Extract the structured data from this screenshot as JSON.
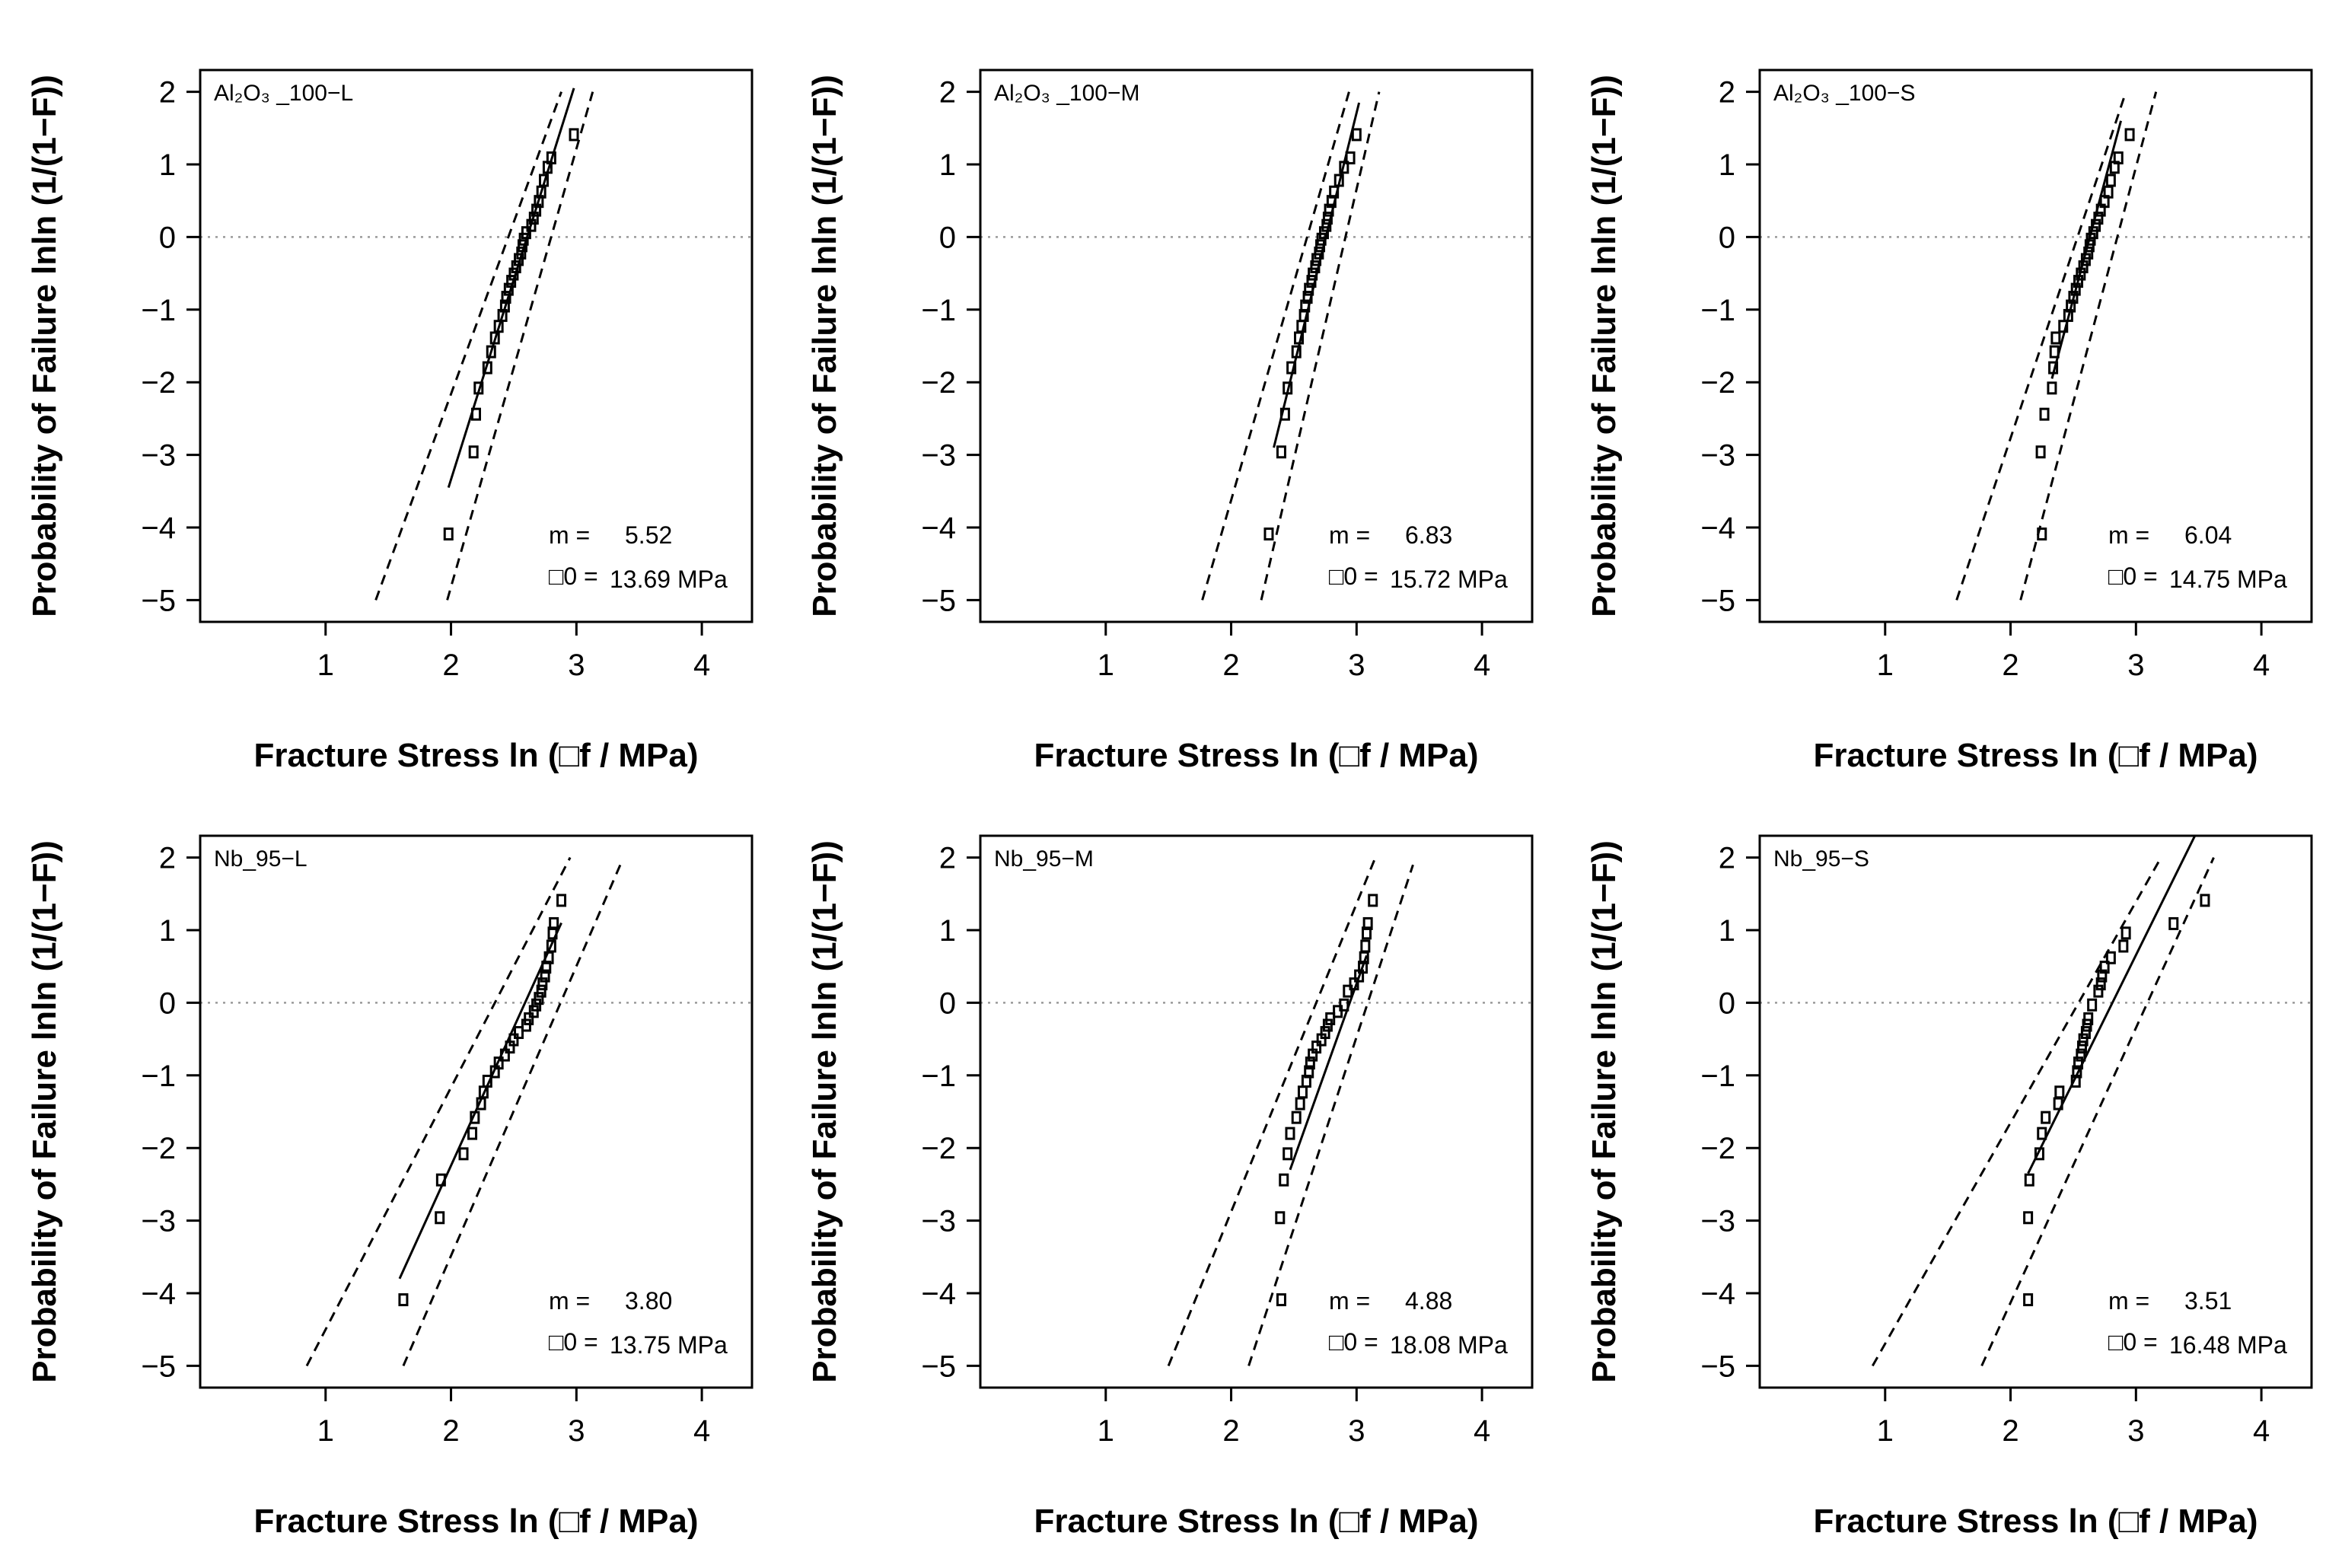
{
  "chart_data": [
    {
      "type": "scatter",
      "label": "Al₂O₃ _100−L",
      "xlabel": "Fracture Stress ln (□f / MPa)",
      "ylabel": "Probability of Failure lnln (1/(1−F))",
      "xlim": [
        0,
        4.4
      ],
      "ylim": [
        -5.3,
        2.3
      ],
      "xticks": [
        "1",
        "2",
        "3",
        "4"
      ],
      "yticks": [
        "2",
        "1",
        "0",
        "−1",
        "−2",
        "−3",
        "−4",
        "−5"
      ],
      "reference_line_y": 0,
      "points": [
        {
          "x": 1.98,
          "y": -4.09
        },
        {
          "x": 2.18,
          "y": -2.96
        },
        {
          "x": 2.2,
          "y": -2.44
        },
        {
          "x": 2.22,
          "y": -2.08
        },
        {
          "x": 2.29,
          "y": -1.8
        },
        {
          "x": 2.32,
          "y": -1.58
        },
        {
          "x": 2.35,
          "y": -1.39
        },
        {
          "x": 2.38,
          "y": -1.23
        },
        {
          "x": 2.41,
          "y": -1.08
        },
        {
          "x": 2.43,
          "y": -0.95
        },
        {
          "x": 2.44,
          "y": -0.83
        },
        {
          "x": 2.46,
          "y": -0.72
        },
        {
          "x": 2.48,
          "y": -0.61
        },
        {
          "x": 2.5,
          "y": -0.51
        },
        {
          "x": 2.52,
          "y": -0.41
        },
        {
          "x": 2.54,
          "y": -0.31
        },
        {
          "x": 2.56,
          "y": -0.22
        },
        {
          "x": 2.57,
          "y": -0.12
        },
        {
          "x": 2.58,
          "y": -0.03
        },
        {
          "x": 2.6,
          "y": 0.06
        },
        {
          "x": 2.64,
          "y": 0.16
        },
        {
          "x": 2.66,
          "y": 0.26
        },
        {
          "x": 2.68,
          "y": 0.37
        },
        {
          "x": 2.7,
          "y": 0.49
        },
        {
          "x": 2.72,
          "y": 0.62
        },
        {
          "x": 2.74,
          "y": 0.78
        },
        {
          "x": 2.77,
          "y": 0.96
        },
        {
          "x": 2.8,
          "y": 1.09
        },
        {
          "x": 2.98,
          "y": 1.41
        }
      ],
      "fit_line": [
        {
          "x": 1.98,
          "y": -3.45
        },
        {
          "x": 2.98,
          "y": 2.05
        }
      ],
      "conf_upper": [
        {
          "x": 1.4,
          "y": -5.0
        },
        {
          "x": 2.88,
          "y": 2.0
        }
      ],
      "conf_lower": [
        {
          "x": 1.97,
          "y": -5.0
        },
        {
          "x": 3.13,
          "y": 2.0
        }
      ],
      "m_label": "m =",
      "m_value": "5.52",
      "sigma_label": "□0 =",
      "sigma_value": "13.69 MPa"
    },
    {
      "type": "scatter",
      "label": "Al₂O₃ _100−M",
      "xlabel": "Fracture Stress ln (□f / MPa)",
      "ylabel": "Probability of Failure lnln (1/(1−F))",
      "xlim": [
        0,
        4.4
      ],
      "ylim": [
        -5.3,
        2.3
      ],
      "xticks": [
        "1",
        "2",
        "3",
        "4"
      ],
      "yticks": [
        "2",
        "1",
        "0",
        "−1",
        "−2",
        "−3",
        "−4",
        "−5"
      ],
      "reference_line_y": 0,
      "points": [
        {
          "x": 2.3,
          "y": -4.09
        },
        {
          "x": 2.4,
          "y": -2.96
        },
        {
          "x": 2.43,
          "y": -2.44
        },
        {
          "x": 2.45,
          "y": -2.08
        },
        {
          "x": 2.48,
          "y": -1.8
        },
        {
          "x": 2.52,
          "y": -1.58
        },
        {
          "x": 2.54,
          "y": -1.39
        },
        {
          "x": 2.56,
          "y": -1.23
        },
        {
          "x": 2.58,
          "y": -1.08
        },
        {
          "x": 2.59,
          "y": -0.95
        },
        {
          "x": 2.61,
          "y": -0.83
        },
        {
          "x": 2.62,
          "y": -0.72
        },
        {
          "x": 2.64,
          "y": -0.61
        },
        {
          "x": 2.65,
          "y": -0.51
        },
        {
          "x": 2.67,
          "y": -0.41
        },
        {
          "x": 2.68,
          "y": -0.31
        },
        {
          "x": 2.7,
          "y": -0.22
        },
        {
          "x": 2.71,
          "y": -0.12
        },
        {
          "x": 2.72,
          "y": -0.03
        },
        {
          "x": 2.74,
          "y": 0.06
        },
        {
          "x": 2.76,
          "y": 0.16
        },
        {
          "x": 2.77,
          "y": 0.26
        },
        {
          "x": 2.78,
          "y": 0.37
        },
        {
          "x": 2.8,
          "y": 0.49
        },
        {
          "x": 2.82,
          "y": 0.62
        },
        {
          "x": 2.86,
          "y": 0.78
        },
        {
          "x": 2.9,
          "y": 0.96
        },
        {
          "x": 2.95,
          "y": 1.09
        },
        {
          "x": 3.0,
          "y": 1.41
        }
      ],
      "fit_line": [
        {
          "x": 2.34,
          "y": -2.9
        },
        {
          "x": 3.02,
          "y": 1.85
        }
      ],
      "conf_upper": [
        {
          "x": 1.77,
          "y": -5.0
        },
        {
          "x": 2.94,
          "y": 2.0
        }
      ],
      "conf_lower": [
        {
          "x": 2.24,
          "y": -5.0
        },
        {
          "x": 3.18,
          "y": 2.0
        }
      ],
      "m_label": "m =",
      "m_value": "6.83",
      "sigma_label": "□0 =",
      "sigma_value": "15.72 MPa"
    },
    {
      "type": "scatter",
      "label": "Al₂O₃ _100−S",
      "xlabel": "Fracture Stress ln (□f / MPa)",
      "ylabel": "Probability of Failure lnln (1/(1−F))",
      "xlim": [
        0,
        4.4
      ],
      "ylim": [
        -5.3,
        2.3
      ],
      "xticks": [
        "1",
        "2",
        "3",
        "4"
      ],
      "yticks": [
        "2",
        "1",
        "0",
        "−1",
        "−2",
        "−3",
        "−4",
        "−5"
      ],
      "reference_line_y": 0,
      "points": [
        {
          "x": 2.25,
          "y": -4.09
        },
        {
          "x": 2.24,
          "y": -2.96
        },
        {
          "x": 2.27,
          "y": -2.44
        },
        {
          "x": 2.33,
          "y": -2.08
        },
        {
          "x": 2.34,
          "y": -1.8
        },
        {
          "x": 2.35,
          "y": -1.58
        },
        {
          "x": 2.36,
          "y": -1.39
        },
        {
          "x": 2.42,
          "y": -1.23
        },
        {
          "x": 2.46,
          "y": -1.08
        },
        {
          "x": 2.48,
          "y": -0.95
        },
        {
          "x": 2.5,
          "y": -0.83
        },
        {
          "x": 2.52,
          "y": -0.72
        },
        {
          "x": 2.54,
          "y": -0.61
        },
        {
          "x": 2.56,
          "y": -0.51
        },
        {
          "x": 2.58,
          "y": -0.41
        },
        {
          "x": 2.6,
          "y": -0.31
        },
        {
          "x": 2.62,
          "y": -0.22
        },
        {
          "x": 2.63,
          "y": -0.12
        },
        {
          "x": 2.64,
          "y": -0.03
        },
        {
          "x": 2.66,
          "y": 0.06
        },
        {
          "x": 2.68,
          "y": 0.16
        },
        {
          "x": 2.7,
          "y": 0.26
        },
        {
          "x": 2.72,
          "y": 0.37
        },
        {
          "x": 2.75,
          "y": 0.49
        },
        {
          "x": 2.78,
          "y": 0.62
        },
        {
          "x": 2.8,
          "y": 0.78
        },
        {
          "x": 2.83,
          "y": 0.96
        },
        {
          "x": 2.86,
          "y": 1.09
        },
        {
          "x": 2.95,
          "y": 1.41
        }
      ],
      "fit_line": [
        {
          "x": 2.33,
          "y": -1.95
        },
        {
          "x": 2.88,
          "y": 1.6
        }
      ],
      "conf_upper": [
        {
          "x": 1.57,
          "y": -5.0
        },
        {
          "x": 2.92,
          "y": 2.0
        }
      ],
      "conf_lower": [
        {
          "x": 2.08,
          "y": -5.0
        },
        {
          "x": 3.16,
          "y": 2.0
        }
      ],
      "m_label": "m =",
      "m_value": "6.04",
      "sigma_label": "□0 =",
      "sigma_value": "14.75 MPa"
    },
    {
      "type": "scatter",
      "label": "Nb_95−L",
      "xlabel": "Fracture Stress ln (□f / MPa)",
      "ylabel": "Probability of Failure lnln (1/(1−F))",
      "xlim": [
        0,
        4.4
      ],
      "ylim": [
        -5.3,
        2.3
      ],
      "xticks": [
        "1",
        "2",
        "3",
        "4"
      ],
      "yticks": [
        "2",
        "1",
        "0",
        "−1",
        "−2",
        "−3",
        "−4",
        "−5"
      ],
      "reference_line_y": 0,
      "points": [
        {
          "x": 1.62,
          "y": -4.09
        },
        {
          "x": 1.91,
          "y": -2.96
        },
        {
          "x": 1.92,
          "y": -2.44
        },
        {
          "x": 2.1,
          "y": -2.08
        },
        {
          "x": 2.17,
          "y": -1.8
        },
        {
          "x": 2.19,
          "y": -1.58
        },
        {
          "x": 2.24,
          "y": -1.39
        },
        {
          "x": 2.26,
          "y": -1.23
        },
        {
          "x": 2.29,
          "y": -1.08
        },
        {
          "x": 2.35,
          "y": -0.95
        },
        {
          "x": 2.38,
          "y": -0.83
        },
        {
          "x": 2.43,
          "y": -0.72
        },
        {
          "x": 2.47,
          "y": -0.61
        },
        {
          "x": 2.5,
          "y": -0.51
        },
        {
          "x": 2.54,
          "y": -0.41
        },
        {
          "x": 2.6,
          "y": -0.31
        },
        {
          "x": 2.62,
          "y": -0.22
        },
        {
          "x": 2.66,
          "y": -0.12
        },
        {
          "x": 2.68,
          "y": -0.03
        },
        {
          "x": 2.7,
          "y": 0.06
        },
        {
          "x": 2.72,
          "y": 0.16
        },
        {
          "x": 2.73,
          "y": 0.26
        },
        {
          "x": 2.75,
          "y": 0.37
        },
        {
          "x": 2.76,
          "y": 0.49
        },
        {
          "x": 2.78,
          "y": 0.62
        },
        {
          "x": 2.8,
          "y": 0.78
        },
        {
          "x": 2.81,
          "y": 0.96
        },
        {
          "x": 2.82,
          "y": 1.09
        },
        {
          "x": 2.88,
          "y": 1.41
        }
      ],
      "fit_line": [
        {
          "x": 1.59,
          "y": -3.8
        },
        {
          "x": 2.88,
          "y": 1.1
        }
      ],
      "conf_upper": [
        {
          "x": 0.85,
          "y": -5.0
        },
        {
          "x": 2.95,
          "y": 2.0
        }
      ],
      "conf_lower": [
        {
          "x": 1.62,
          "y": -5.0
        },
        {
          "x": 3.35,
          "y": 1.9
        }
      ],
      "m_label": "m =",
      "m_value": "3.80",
      "sigma_label": "□0 =",
      "sigma_value": "13.75 MPa"
    },
    {
      "type": "scatter",
      "label": "Nb_95−M",
      "xlabel": "Fracture Stress ln (□f / MPa)",
      "ylabel": "Probability of Failure lnln (1/(1−F))",
      "xlim": [
        0,
        4.4
      ],
      "ylim": [
        -5.3,
        2.3
      ],
      "xticks": [
        "1",
        "2",
        "3",
        "4"
      ],
      "yticks": [
        "2",
        "1",
        "0",
        "−1",
        "−2",
        "−3",
        "−4",
        "−5"
      ],
      "reference_line_y": 0,
      "points": [
        {
          "x": 2.4,
          "y": -4.09
        },
        {
          "x": 2.39,
          "y": -2.96
        },
        {
          "x": 2.42,
          "y": -2.44
        },
        {
          "x": 2.45,
          "y": -2.08
        },
        {
          "x": 2.47,
          "y": -1.8
        },
        {
          "x": 2.52,
          "y": -1.58
        },
        {
          "x": 2.55,
          "y": -1.39
        },
        {
          "x": 2.57,
          "y": -1.23
        },
        {
          "x": 2.6,
          "y": -1.08
        },
        {
          "x": 2.62,
          "y": -0.95
        },
        {
          "x": 2.63,
          "y": -0.83
        },
        {
          "x": 2.65,
          "y": -0.72
        },
        {
          "x": 2.68,
          "y": -0.61
        },
        {
          "x": 2.72,
          "y": -0.51
        },
        {
          "x": 2.75,
          "y": -0.41
        },
        {
          "x": 2.77,
          "y": -0.31
        },
        {
          "x": 2.79,
          "y": -0.22
        },
        {
          "x": 2.85,
          "y": -0.12
        },
        {
          "x": 2.9,
          "y": -0.03
        },
        {
          "x": 2.93,
          "y": 0.16
        },
        {
          "x": 2.98,
          "y": 0.26
        },
        {
          "x": 3.02,
          "y": 0.37
        },
        {
          "x": 3.05,
          "y": 0.49
        },
        {
          "x": 3.06,
          "y": 0.62
        },
        {
          "x": 3.07,
          "y": 0.78
        },
        {
          "x": 3.08,
          "y": 0.96
        },
        {
          "x": 3.09,
          "y": 1.09
        },
        {
          "x": 3.13,
          "y": 1.41
        }
      ],
      "fit_line": [
        {
          "x": 2.47,
          "y": -2.3
        },
        {
          "x": 3.08,
          "y": 0.65
        }
      ],
      "conf_upper": [
        {
          "x": 1.5,
          "y": -5.0
        },
        {
          "x": 3.15,
          "y": 2.0
        }
      ],
      "conf_lower": [
        {
          "x": 2.14,
          "y": -5.0
        },
        {
          "x": 3.45,
          "y": 1.9
        }
      ],
      "m_label": "m =",
      "m_value": "4.88",
      "sigma_label": "□0 =",
      "sigma_value": "18.08 MPa"
    },
    {
      "type": "scatter",
      "label": "Nb_95−S",
      "xlabel": "Fracture Stress ln (□f / MPa)",
      "ylabel": "Probability of Failure lnln (1/(1−F))",
      "xlim": [
        0,
        4.4
      ],
      "ylim": [
        -5.3,
        2.3
      ],
      "xticks": [
        "1",
        "2",
        "3",
        "4"
      ],
      "yticks": [
        "2",
        "1",
        "0",
        "−1",
        "−2",
        "−3",
        "−4",
        "−5"
      ],
      "reference_line_y": 0,
      "points": [
        {
          "x": 2.14,
          "y": -4.09
        },
        {
          "x": 2.14,
          "y": -2.96
        },
        {
          "x": 2.15,
          "y": -2.44
        },
        {
          "x": 2.23,
          "y": -2.08
        },
        {
          "x": 2.25,
          "y": -1.8
        },
        {
          "x": 2.28,
          "y": -1.58
        },
        {
          "x": 2.38,
          "y": -1.39
        },
        {
          "x": 2.39,
          "y": -1.23
        },
        {
          "x": 2.52,
          "y": -1.08
        },
        {
          "x": 2.53,
          "y": -0.95
        },
        {
          "x": 2.54,
          "y": -0.83
        },
        {
          "x": 2.56,
          "y": -0.72
        },
        {
          "x": 2.57,
          "y": -0.61
        },
        {
          "x": 2.58,
          "y": -0.51
        },
        {
          "x": 2.6,
          "y": -0.41
        },
        {
          "x": 2.61,
          "y": -0.31
        },
        {
          "x": 2.62,
          "y": -0.22
        },
        {
          "x": 2.65,
          "y": -0.03
        },
        {
          "x": 2.7,
          "y": 0.16
        },
        {
          "x": 2.72,
          "y": 0.26
        },
        {
          "x": 2.73,
          "y": 0.37
        },
        {
          "x": 2.75,
          "y": 0.49
        },
        {
          "x": 2.8,
          "y": 0.62
        },
        {
          "x": 2.9,
          "y": 0.78
        },
        {
          "x": 2.92,
          "y": 0.96
        },
        {
          "x": 3.3,
          "y": 1.09
        },
        {
          "x": 3.55,
          "y": 1.41
        }
      ],
      "fit_line": [
        {
          "x": 2.14,
          "y": -2.35
        },
        {
          "x": 3.47,
          "y": 2.3
        }
      ],
      "conf_upper": [
        {
          "x": 0.9,
          "y": -5.0
        },
        {
          "x": 3.2,
          "y": 2.0
        }
      ],
      "conf_lower": [
        {
          "x": 1.77,
          "y": -5.0
        },
        {
          "x": 3.62,
          "y": 2.0
        }
      ],
      "m_label": "m =",
      "m_value": "3.51",
      "sigma_label": "□0 =",
      "sigma_value": "16.48 MPa"
    }
  ]
}
